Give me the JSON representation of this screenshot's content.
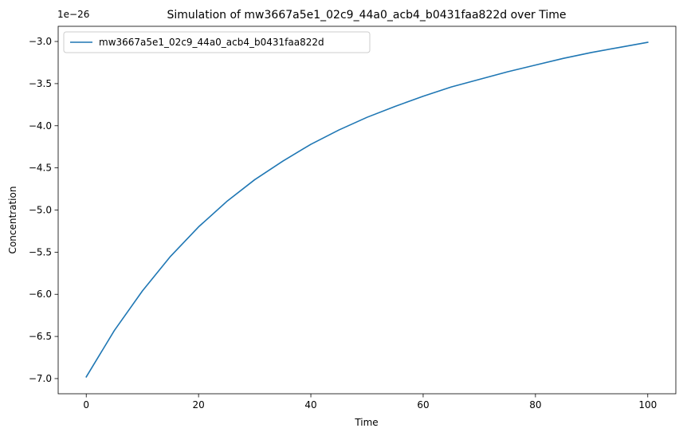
{
  "chart_data": {
    "type": "line",
    "title": "Simulation of mw3667a5e1_02c9_44a0_acb4_b0431faa822d over Time",
    "xlabel": "Time",
    "ylabel": "Concentration",
    "offset_text": "1e−26",
    "xlim": [
      -5,
      105
    ],
    "ylim": [
      -7.18,
      -2.82
    ],
    "xticks": [
      0,
      20,
      40,
      60,
      80,
      100
    ],
    "xtick_labels": [
      "0",
      "20",
      "40",
      "60",
      "80",
      "100"
    ],
    "yticks": [
      -7.0,
      -6.5,
      -6.0,
      -5.5,
      -5.0,
      -4.5,
      -4.0,
      -3.5,
      -3.0
    ],
    "ytick_labels": [
      "−7.0",
      "−6.5",
      "−6.0",
      "−5.5",
      "−5.0",
      "−4.5",
      "−4.0",
      "−3.5",
      "−3.0"
    ],
    "grid": false,
    "legend_position": "top-left",
    "series": [
      {
        "name": "mw3667a5e1_02c9_44a0_acb4_b0431faa822d",
        "color": "#1f77b4",
        "x": [
          0,
          5,
          10,
          15,
          20,
          25,
          30,
          35,
          40,
          45,
          50,
          55,
          60,
          65,
          70,
          75,
          80,
          85,
          90,
          95,
          100
        ],
        "y": [
          -6.98,
          -6.43,
          -5.96,
          -5.55,
          -5.2,
          -4.9,
          -4.64,
          -4.42,
          -4.22,
          -4.05,
          -3.9,
          -3.77,
          -3.65,
          -3.54,
          -3.45,
          -3.36,
          -3.28,
          -3.2,
          -3.13,
          -3.07,
          -3.01
        ]
      }
    ]
  }
}
